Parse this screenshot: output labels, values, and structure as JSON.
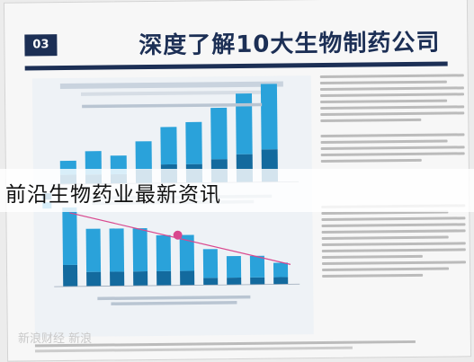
{
  "page": {
    "badge": "03",
    "title": "深度了解10大生物制药公司",
    "banner": "前沿生物药业最新资讯",
    "watermark": "新浪财经 新浪"
  },
  "chart_top": {
    "legend": [
      "",
      ""
    ],
    "values_light": [
      3,
      5,
      4,
      6,
      8,
      9,
      11,
      13,
      14
    ],
    "values_dark": [
      2,
      2,
      2,
      3,
      4,
      4,
      5,
      6,
      7
    ]
  },
  "chart_bottom": {
    "values_light": [
      8,
      6,
      6,
      6,
      5,
      5,
      4,
      3,
      3,
      2
    ],
    "values_dark": [
      3,
      2,
      2,
      2,
      2,
      2,
      1,
      1,
      1,
      1
    ]
  },
  "colors": {
    "navy": "#1c2f55",
    "dark_teal": "#136a9e",
    "light_teal": "#2aa2da",
    "trend": "#d9488e"
  }
}
